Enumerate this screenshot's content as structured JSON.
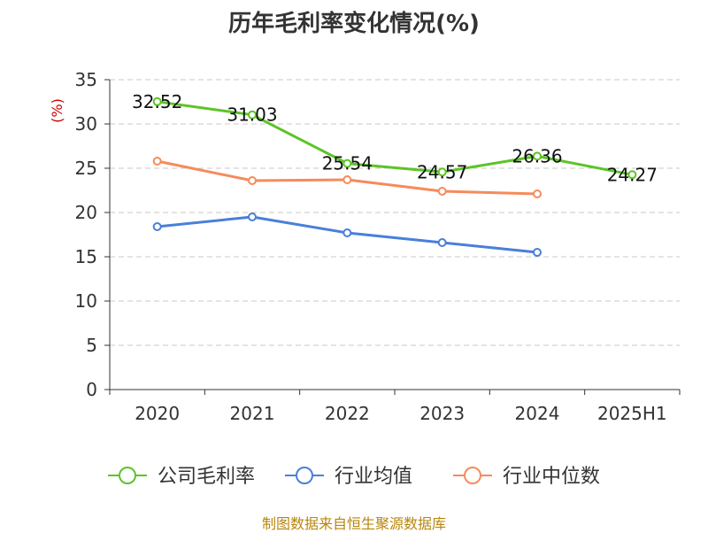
{
  "chart_data": {
    "type": "line",
    "title": "历年毛利率变化情况(%)",
    "ylabel": "(%)",
    "categories": [
      "2020",
      "2021",
      "2022",
      "2023",
      "2024",
      "2025H1"
    ],
    "ylim": [
      0,
      35
    ],
    "yticks": [
      0,
      5,
      10,
      15,
      20,
      25,
      30,
      35
    ],
    "grid": true,
    "legend_position": "bottom",
    "series": [
      {
        "name": "公司毛利率",
        "color": "#5cc425",
        "values": [
          32.52,
          31.03,
          25.54,
          24.57,
          26.36,
          24.27
        ],
        "show_labels": true
      },
      {
        "name": "行业均值",
        "color": "#4a7fd9",
        "values": [
          18.4,
          19.5,
          17.7,
          16.6,
          15.5,
          null
        ],
        "show_labels": false
      },
      {
        "name": "行业中位数",
        "color": "#f58b5c",
        "values": [
          25.8,
          23.6,
          23.7,
          22.4,
          22.1,
          null
        ],
        "show_labels": false
      }
    ]
  },
  "source": "制图数据来自恒生聚源数据库"
}
